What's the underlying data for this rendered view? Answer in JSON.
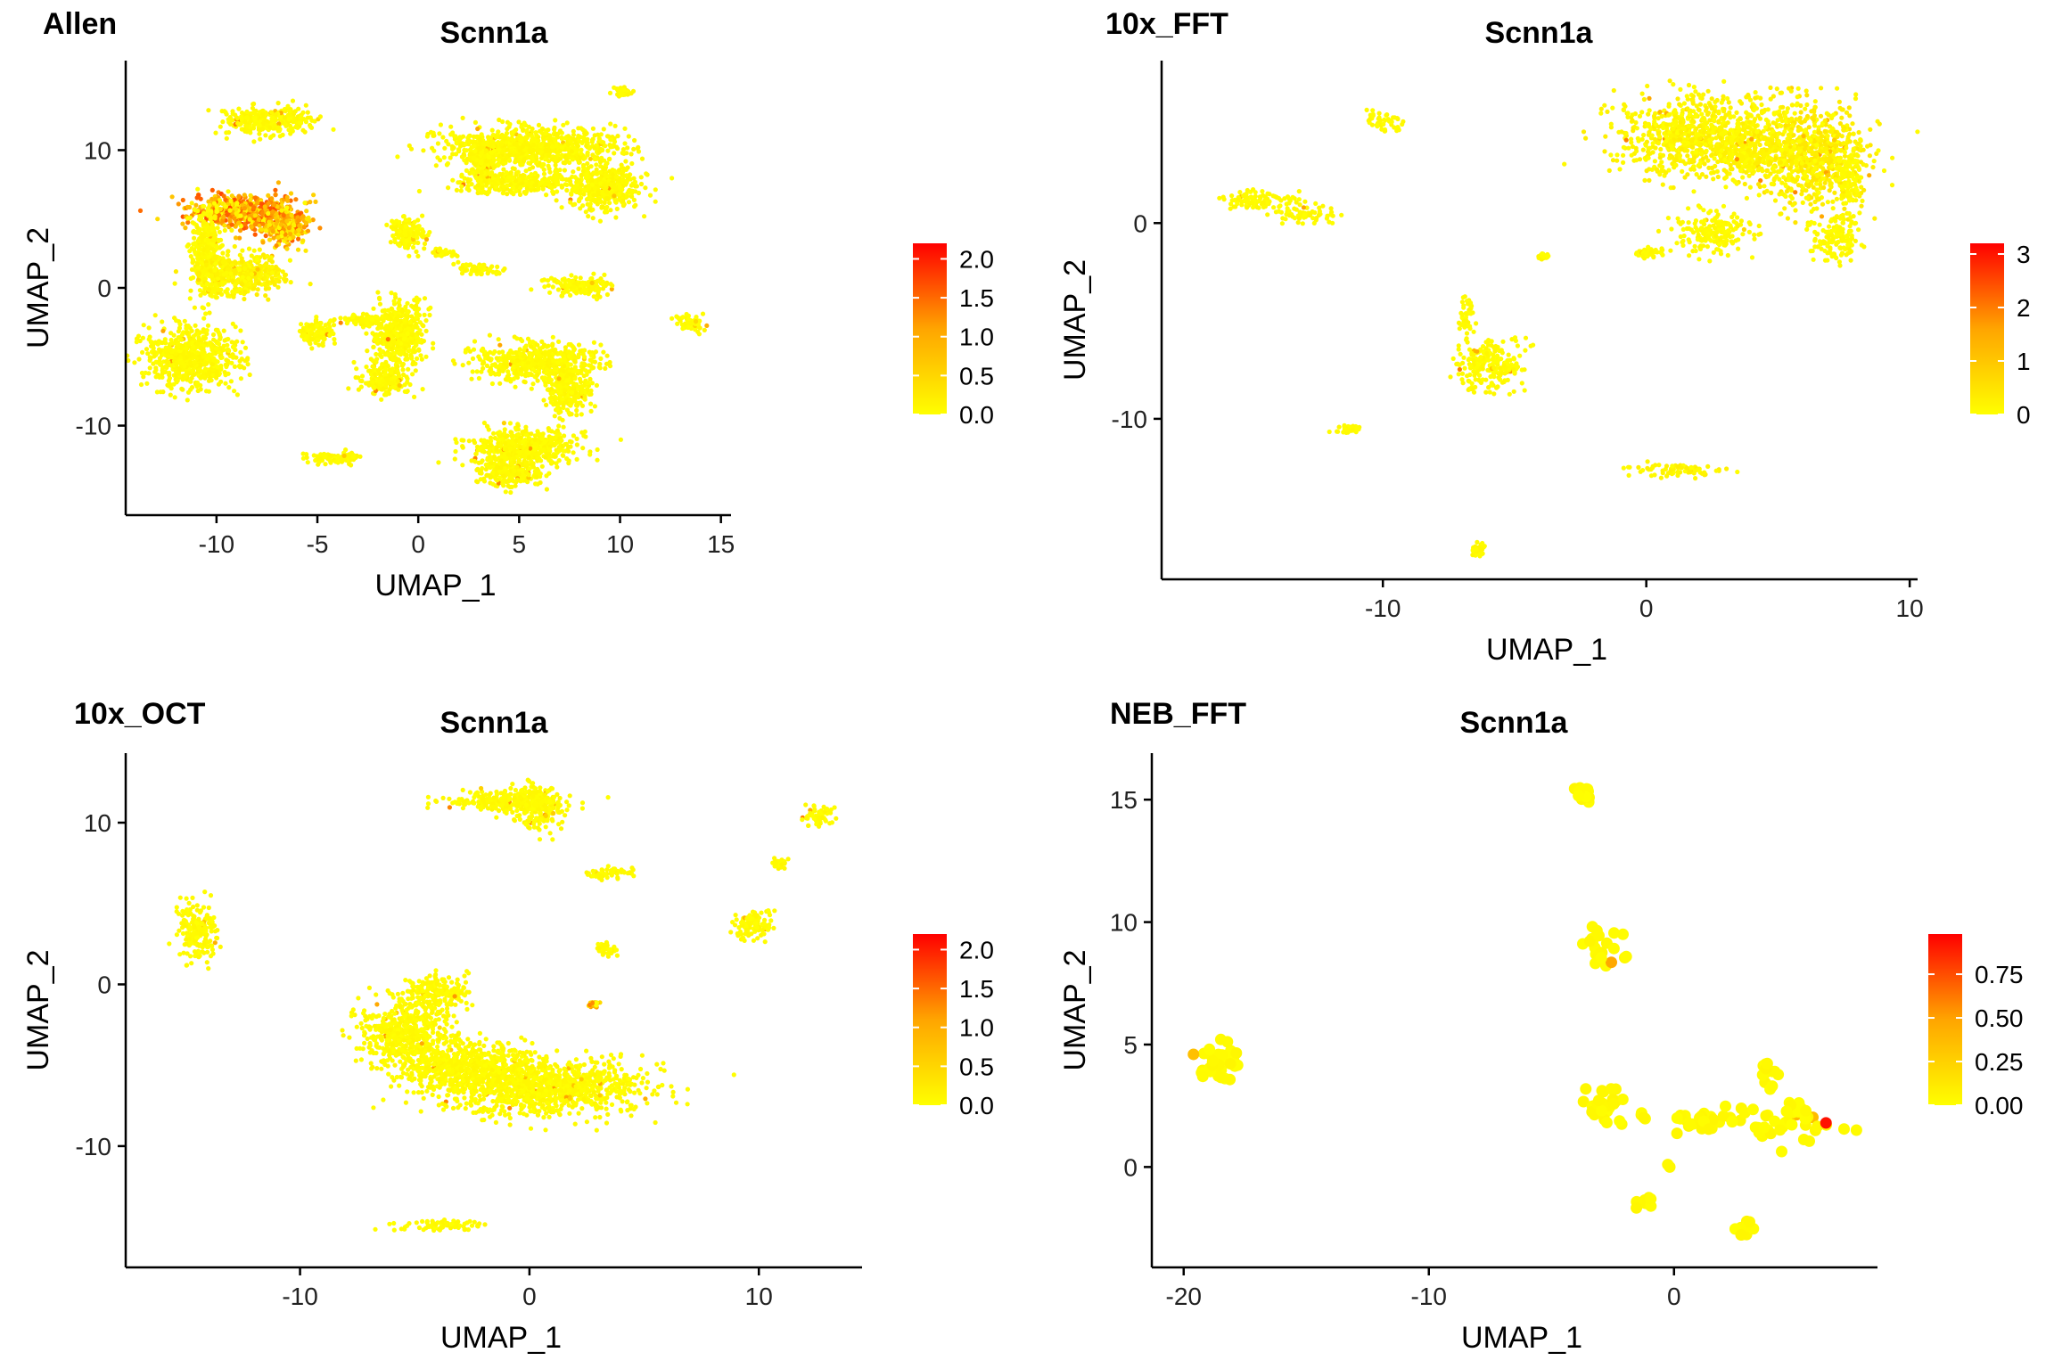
{
  "figure": {
    "background": "#ffffff"
  },
  "colorscale": {
    "low": "#ffff00",
    "mid": "#ffa500",
    "high": "#ff0000"
  },
  "chart_data": [
    {
      "type": "scatter",
      "panel_tag": "Allen",
      "title": "Scnn1a",
      "xlabel": "UMAP_1",
      "ylabel": "UMAP_2",
      "xlim": [
        -14.5,
        15.5
      ],
      "ylim": [
        -16.5,
        16.5
      ],
      "xticks": [
        -10,
        -5,
        0,
        5,
        10,
        15
      ],
      "yticks": [
        -10,
        0,
        10
      ],
      "xtick_labels": [
        "-10",
        "-5",
        "0",
        "5",
        "10",
        "15"
      ],
      "ytick_labels": [
        "-10",
        "0",
        "10"
      ],
      "grid": false,
      "legend": {
        "placement": "right",
        "min": 0,
        "max": 2.2,
        "ticks": [
          0.0,
          0.5,
          1.0,
          1.5,
          2.0
        ],
        "tick_labels": [
          "0.0",
          "0.5",
          "1.0",
          "1.5",
          "2.0"
        ]
      },
      "clusters": [
        {
          "cx": -7.5,
          "cy": 12.1,
          "rx": 2.0,
          "ry": 0.9,
          "expr": 0.05
        },
        {
          "cx": -8.6,
          "cy": 5.5,
          "rx": 2.5,
          "ry": 1.2,
          "expr": 0.8
        },
        {
          "cx": -6.6,
          "cy": 4.3,
          "rx": 1.0,
          "ry": 1.2,
          "expr": 0.6
        },
        {
          "cx": -10.5,
          "cy": 2.5,
          "rx": 0.7,
          "ry": 3.0,
          "expr": 0.05
        },
        {
          "cx": -8.8,
          "cy": 1.0,
          "rx": 1.9,
          "ry": 1.3,
          "expr": 0.1
        },
        {
          "cx": -11.3,
          "cy": -5.1,
          "rx": 2.0,
          "ry": 1.9,
          "expr": 0.05
        },
        {
          "cx": -5.0,
          "cy": -3.2,
          "rx": 0.8,
          "ry": 0.8,
          "expr": 0.05
        },
        {
          "cx": -1.0,
          "cy": -3.5,
          "rx": 1.2,
          "ry": 2.3,
          "expr": 0.05
        },
        {
          "cx": -2.6,
          "cy": -2.3,
          "rx": 1.2,
          "ry": 0.4,
          "expr": 0.05
        },
        {
          "cx": -1.7,
          "cy": -6.8,
          "rx": 1.2,
          "ry": 0.8,
          "expr": 0.05
        },
        {
          "cx": -0.5,
          "cy": 4.0,
          "rx": 0.8,
          "ry": 1.0,
          "expr": 0.05
        },
        {
          "cx": 5.5,
          "cy": 10.2,
          "rx": 3.8,
          "ry": 1.3,
          "expr": 0.05
        },
        {
          "cx": 4.8,
          "cy": 7.6,
          "rx": 2.6,
          "ry": 0.7,
          "expr": 0.05
        },
        {
          "cx": 9.2,
          "cy": 7.3,
          "rx": 1.6,
          "ry": 1.5,
          "expr": 0.05
        },
        {
          "cx": 3.2,
          "cy": 9.2,
          "rx": 0.6,
          "ry": 1.3,
          "expr": 0.05
        },
        {
          "cx": 8.0,
          "cy": 0.2,
          "rx": 1.4,
          "ry": 0.6,
          "expr": 0.05
        },
        {
          "cx": 3.0,
          "cy": 1.4,
          "rx": 1.0,
          "ry": 0.4,
          "expr": 0.05
        },
        {
          "cx": 1.2,
          "cy": 2.5,
          "rx": 0.5,
          "ry": 0.3,
          "expr": 0.05
        },
        {
          "cx": 5.8,
          "cy": -5.4,
          "rx": 2.6,
          "ry": 1.2,
          "expr": 0.05
        },
        {
          "cx": 7.5,
          "cy": -7.5,
          "rx": 1.0,
          "ry": 1.4,
          "expr": 0.05
        },
        {
          "cx": 5.2,
          "cy": -11.6,
          "rx": 2.3,
          "ry": 1.3,
          "expr": 0.05
        },
        {
          "cx": 4.5,
          "cy": -13.5,
          "rx": 1.5,
          "ry": 0.8,
          "expr": 0.05
        },
        {
          "cx": 13.5,
          "cy": -2.5,
          "rx": 0.7,
          "ry": 0.5,
          "expr": 0.05
        },
        {
          "cx": -4.2,
          "cy": -12.3,
          "rx": 1.2,
          "ry": 0.4,
          "expr": 0.05
        },
        {
          "cx": 10.2,
          "cy": 14.3,
          "rx": 0.4,
          "ry": 0.3,
          "expr": 0.05
        }
      ]
    },
    {
      "type": "scatter",
      "panel_tag": "10x_FFT",
      "title": "Scnn1a",
      "xlabel": "UMAP_1",
      "ylabel": "UMAP_2",
      "xlim": [
        -18.4,
        10.3
      ],
      "ylim": [
        -18.2,
        8.3
      ],
      "xticks": [
        -10,
        0,
        10
      ],
      "yticks": [
        -10,
        0
      ],
      "xtick_labels": [
        "-10",
        "0",
        "10"
      ],
      "ytick_labels": [
        "-10",
        "0"
      ],
      "grid": false,
      "legend": {
        "placement": "right",
        "min": 0,
        "max": 3.2,
        "ticks": [
          0,
          1,
          2,
          3
        ],
        "tick_labels": [
          "0",
          "1",
          "2",
          "3"
        ]
      },
      "clusters": [
        {
          "cx": -10.0,
          "cy": 5.2,
          "rx": 0.6,
          "ry": 0.5,
          "expr": 0.05
        },
        {
          "cx": -14.8,
          "cy": 1.1,
          "rx": 1.3,
          "ry": 0.5,
          "expr": 0.05
        },
        {
          "cx": -13.0,
          "cy": 0.5,
          "rx": 1.0,
          "ry": 0.4,
          "expr": 0.05
        },
        {
          "cx": 2.0,
          "cy": 4.5,
          "rx": 2.8,
          "ry": 1.8,
          "expr": 0.1
        },
        {
          "cx": 6.3,
          "cy": 3.6,
          "rx": 1.9,
          "ry": 2.4,
          "expr": 0.15
        },
        {
          "cx": 4.0,
          "cy": 3.4,
          "rx": 1.2,
          "ry": 1.2,
          "expr": 0.1
        },
        {
          "cx": 2.5,
          "cy": -0.5,
          "rx": 1.3,
          "ry": 0.9,
          "expr": 0.05
        },
        {
          "cx": 7.2,
          "cy": -0.8,
          "rx": 0.8,
          "ry": 1.1,
          "expr": 0.05
        },
        {
          "cx": 7.7,
          "cy": 2.3,
          "rx": 0.4,
          "ry": 1.5,
          "expr": 0.05
        },
        {
          "cx": 0.1,
          "cy": -1.5,
          "rx": 0.5,
          "ry": 0.2,
          "expr": 0.05
        },
        {
          "cx": -5.9,
          "cy": -7.3,
          "rx": 1.2,
          "ry": 1.2,
          "expr": 0.05
        },
        {
          "cx": -6.9,
          "cy": -4.9,
          "rx": 0.3,
          "ry": 1.0,
          "expr": 0.05
        },
        {
          "cx": -11.3,
          "cy": -10.5,
          "rx": 0.4,
          "ry": 0.2,
          "expr": 0.05
        },
        {
          "cx": 1.3,
          "cy": -12.6,
          "rx": 1.5,
          "ry": 0.3,
          "expr": 0.1
        },
        {
          "cx": -6.4,
          "cy": -16.7,
          "rx": 0.2,
          "ry": 0.3,
          "expr": 0.05
        },
        {
          "cx": -3.9,
          "cy": -1.7,
          "rx": 0.2,
          "ry": 0.1,
          "expr": 0.05
        }
      ]
    },
    {
      "type": "scatter",
      "panel_tag": "10x_OCT",
      "title": "Scnn1a",
      "xlabel": "UMAP_1",
      "ylabel": "UMAP_2",
      "xlim": [
        -17.6,
        14.5
      ],
      "ylim": [
        -17.5,
        14.3
      ],
      "xticks": [
        -10,
        0,
        10
      ],
      "yticks": [
        -10,
        0,
        10
      ],
      "xtick_labels": [
        "-10",
        "0",
        "10"
      ],
      "ytick_labels": [
        "-10",
        "0",
        "10"
      ],
      "grid": false,
      "legend": {
        "placement": "right",
        "min": 0,
        "max": 2.2,
        "ticks": [
          0.0,
          0.5,
          1.0,
          1.5,
          2.0
        ],
        "tick_labels": [
          "0.0",
          "0.5",
          "1.0",
          "1.5",
          "2.0"
        ]
      },
      "clusters": [
        {
          "cx": -1.2,
          "cy": 11.3,
          "rx": 2.2,
          "ry": 0.6,
          "expr": 0.05
        },
        {
          "cx": 0.4,
          "cy": 11.0,
          "rx": 1.0,
          "ry": 1.2,
          "expr": 0.05
        },
        {
          "cx": -14.5,
          "cy": 3.4,
          "rx": 0.7,
          "ry": 1.7,
          "expr": 0.05
        },
        {
          "cx": -5.5,
          "cy": -3.0,
          "rx": 1.7,
          "ry": 1.7,
          "expr": 0.05
        },
        {
          "cx": -4.0,
          "cy": -0.5,
          "rx": 1.2,
          "ry": 1.0,
          "expr": 0.05
        },
        {
          "cx": 0.5,
          "cy": -6.3,
          "rx": 4.0,
          "ry": 1.6,
          "expr": 0.05
        },
        {
          "cx": -3.0,
          "cy": -5.0,
          "rx": 2.5,
          "ry": 1.3,
          "expr": 0.05
        },
        {
          "cx": 3.5,
          "cy": 6.9,
          "rx": 1.0,
          "ry": 0.3,
          "expr": 0.05
        },
        {
          "cx": 3.4,
          "cy": 2.2,
          "rx": 0.4,
          "ry": 0.4,
          "expr": 0.05
        },
        {
          "cx": 9.8,
          "cy": 3.6,
          "rx": 0.8,
          "ry": 0.8,
          "expr": 0.05
        },
        {
          "cx": 10.9,
          "cy": 7.5,
          "rx": 0.3,
          "ry": 0.3,
          "expr": 0.05
        },
        {
          "cx": 12.5,
          "cy": 10.4,
          "rx": 0.6,
          "ry": 0.6,
          "expr": 0.05
        },
        {
          "cx": -3.8,
          "cy": -14.9,
          "rx": 1.6,
          "ry": 0.3,
          "expr": 0.05
        },
        {
          "cx": 2.8,
          "cy": -1.2,
          "rx": 0.2,
          "ry": 0.2,
          "expr": 0.5
        }
      ]
    },
    {
      "type": "scatter",
      "panel_tag": "NEB_FFT",
      "title": "Scnn1a",
      "xlabel": "UMAP_1",
      "ylabel": "UMAP_2",
      "xlim": [
        -21.3,
        8.3
      ],
      "ylim": [
        -4.1,
        16.9
      ],
      "xticks": [
        -20,
        -10,
        0
      ],
      "yticks": [
        0,
        5,
        10,
        15
      ],
      "xtick_labels": [
        "-20",
        "-10",
        "0"
      ],
      "ytick_labels": [
        "0",
        "5",
        "10",
        "15"
      ],
      "grid": false,
      "legend": {
        "placement": "right",
        "min": 0,
        "max": 0.98,
        "ticks": [
          0.0,
          0.25,
          0.5,
          0.75
        ],
        "tick_labels": [
          "0.00",
          "0.25",
          "0.50",
          "0.75"
        ]
      },
      "clusters": [
        {
          "cx": -18.6,
          "cy": 4.2,
          "rx": 0.8,
          "ry": 0.7,
          "expr": 0.05,
          "n": 34
        },
        {
          "cx": -3.7,
          "cy": 15.3,
          "rx": 0.4,
          "ry": 0.4,
          "expr": 0.05,
          "n": 18
        },
        {
          "cx": -3.0,
          "cy": 9.0,
          "rx": 0.7,
          "ry": 0.9,
          "expr": 0.05,
          "n": 24
        },
        {
          "cx": -2.8,
          "cy": 2.5,
          "rx": 0.7,
          "ry": 0.8,
          "expr": 0.05,
          "n": 26
        },
        {
          "cx": 1.2,
          "cy": 1.9,
          "rx": 1.3,
          "ry": 0.4,
          "expr": 0.05,
          "n": 26
        },
        {
          "cx": 4.5,
          "cy": 1.8,
          "rx": 1.8,
          "ry": 0.8,
          "expr": 0.05,
          "n": 44
        },
        {
          "cx": 3.8,
          "cy": 3.8,
          "rx": 0.3,
          "ry": 0.6,
          "expr": 0.05,
          "n": 12
        },
        {
          "cx": -1.2,
          "cy": -1.4,
          "rx": 0.3,
          "ry": 0.3,
          "expr": 0.05,
          "n": 8
        },
        {
          "cx": 2.9,
          "cy": -2.6,
          "rx": 0.3,
          "ry": 0.4,
          "expr": 0.05,
          "n": 10
        },
        {
          "cx": -1.2,
          "cy": 2.0,
          "rx": 0.2,
          "ry": 0.2,
          "expr": 0.05,
          "n": 4
        },
        {
          "cx": -0.2,
          "cy": 0.1,
          "rx": 0.1,
          "ry": 0.1,
          "expr": 0.05,
          "n": 2
        }
      ],
      "highlights": [
        {
          "x": 6.2,
          "y": 1.8,
          "expr": 0.95
        },
        {
          "x": -19.6,
          "y": 4.6,
          "expr": 0.35
        }
      ]
    }
  ]
}
